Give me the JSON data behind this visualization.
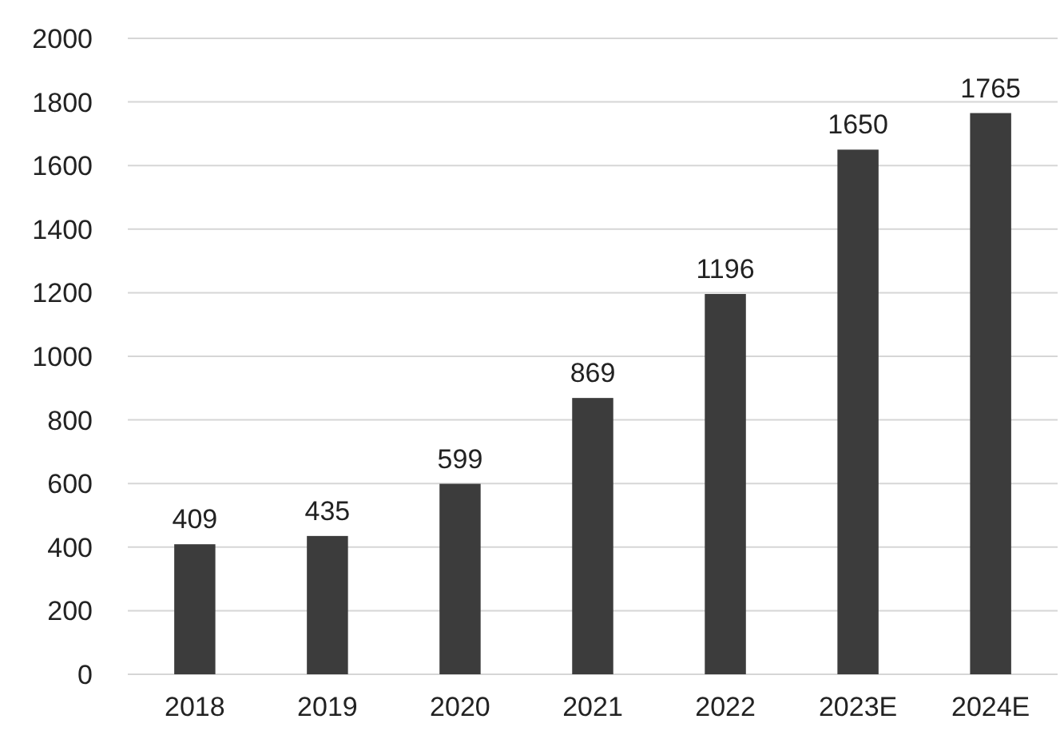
{
  "chart_data": {
    "type": "bar",
    "categories": [
      "2018",
      "2019",
      "2020",
      "2021",
      "2022",
      "2023E",
      "2024E"
    ],
    "values": [
      409,
      435,
      599,
      869,
      1196,
      1650,
      1765
    ],
    "color": "#3c3c3c",
    "ylim": [
      0,
      2000
    ],
    "yticks": [
      0,
      200,
      400,
      600,
      800,
      1000,
      1200,
      1400,
      1600,
      1800,
      2000
    ],
    "grid": "y",
    "data_labels": true
  }
}
